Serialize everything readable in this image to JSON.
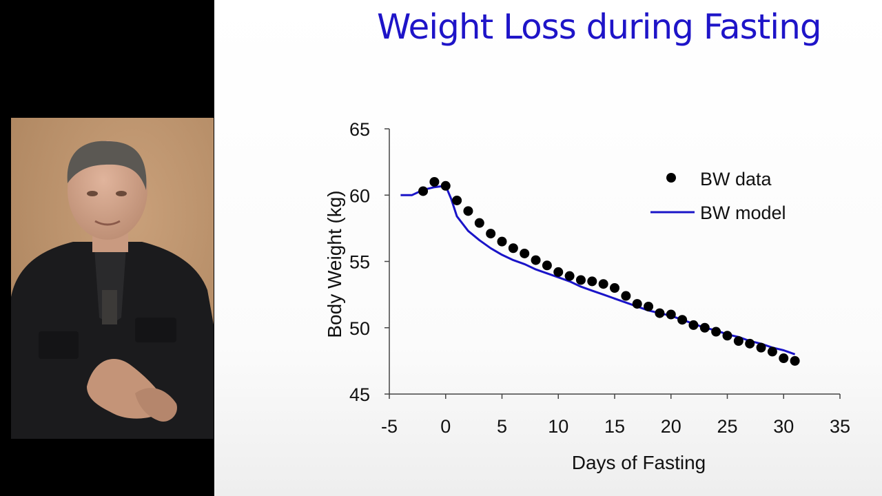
{
  "slide": {
    "title": "Weight Loss during Fasting"
  },
  "speaker": {
    "description": "presenter video inset"
  },
  "chart_data": {
    "type": "scatter",
    "title": "",
    "xlabel": "Days of Fasting",
    "ylabel": "Body Weight (kg)",
    "xlim": [
      -5,
      35
    ],
    "ylim": [
      45,
      65
    ],
    "xticks": [
      -5,
      0,
      5,
      10,
      15,
      20,
      25,
      30,
      35
    ],
    "yticks": [
      45,
      50,
      55,
      60,
      65
    ],
    "grid": false,
    "legend_position": "top-right",
    "series": [
      {
        "name": "BW data",
        "kind": "markers",
        "color": "#000000",
        "x": [
          -2,
          -1,
          0,
          1,
          2,
          3,
          4,
          5,
          6,
          7,
          8,
          9,
          10,
          11,
          12,
          13,
          14,
          15,
          16,
          17,
          18,
          19,
          20,
          21,
          22,
          23,
          24,
          25,
          26,
          27,
          28,
          29,
          30,
          31
        ],
        "y": [
          60.3,
          61.0,
          60.7,
          59.6,
          58.8,
          57.9,
          57.1,
          56.5,
          56.0,
          55.6,
          55.1,
          54.7,
          54.2,
          53.9,
          53.6,
          53.5,
          53.3,
          53.0,
          52.4,
          51.8,
          51.6,
          51.1,
          51.0,
          50.6,
          50.2,
          50.0,
          49.7,
          49.4,
          49.0,
          48.8,
          48.5,
          48.2,
          47.7,
          47.5
        ]
      },
      {
        "name": "BW model",
        "kind": "line",
        "color": "#1a14c8",
        "x": [
          -4,
          -3,
          -2,
          -1,
          0,
          0.5,
          1,
          2,
          3,
          4,
          5,
          6,
          7,
          8,
          9,
          10,
          11,
          12,
          13,
          14,
          15,
          16,
          17,
          18,
          19,
          20,
          21,
          22,
          23,
          24,
          25,
          26,
          27,
          28,
          29,
          30,
          31
        ],
        "y": [
          60.0,
          60.0,
          60.4,
          60.6,
          60.7,
          59.7,
          58.4,
          57.3,
          56.6,
          56.0,
          55.5,
          55.1,
          54.8,
          54.4,
          54.1,
          53.8,
          53.5,
          53.1,
          52.8,
          52.5,
          52.2,
          51.9,
          51.6,
          51.3,
          51.1,
          50.9,
          50.6,
          50.3,
          50.0,
          49.8,
          49.5,
          49.3,
          49.0,
          48.8,
          48.5,
          48.3,
          48.0
        ]
      }
    ]
  }
}
